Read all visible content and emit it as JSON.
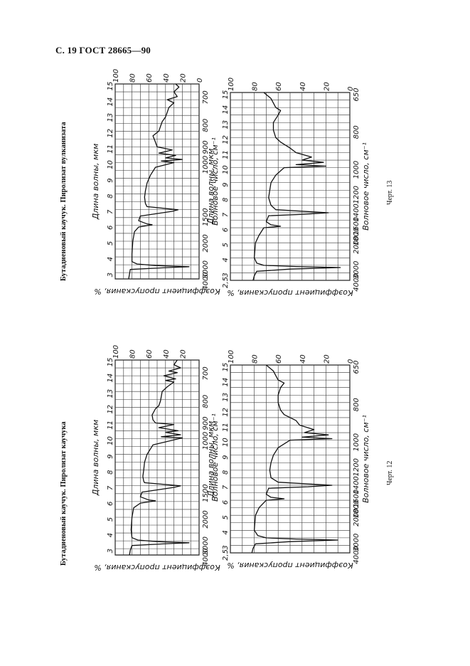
{
  "page": {
    "header": "С. 19 ГОСТ 28665—90"
  },
  "figures": [
    {
      "id": "ch12",
      "caption": "Бутадиеновый каучук. Пиролизат каучука",
      "label": "Черт. 12"
    },
    {
      "id": "ch13",
      "caption": "Бутадиеновый каучук. Пиролизат вулканизата",
      "label": "Черт. 13"
    }
  ],
  "chart_data": [
    {
      "type": "line",
      "figure": "Черт. 12 (верхний спектр)",
      "xlabel": "Длина волны, мкм",
      "xlabel2": "Волновое число, см⁻¹",
      "ylabel": "Коэффициент пропускания, %",
      "wavelength_ticks": [
        "3",
        "4",
        "5",
        "6",
        "7",
        "8",
        "9",
        "10",
        "11",
        "12",
        "13",
        "14",
        "15"
      ],
      "wavenumber_ticks": [
        "4000",
        "3000",
        "2000",
        "1500",
        "1000",
        "900",
        "800",
        "700"
      ],
      "transmittance_ticks": [
        "100",
        "80",
        "60",
        "40",
        "20"
      ],
      "xlim": [
        2.6,
        15
      ],
      "ylim": [
        0,
        100
      ],
      "x": [
        2.6,
        2.9,
        3.2,
        3.3,
        3.38,
        3.45,
        3.55,
        3.7,
        4.2,
        5.0,
        5.6,
        5.9,
        6.05,
        6.1,
        6.3,
        6.6,
        6.9,
        7.0,
        7.2,
        7.3,
        7.6,
        8.0,
        8.5,
        9.0,
        9.6,
        10.05,
        10.12,
        10.25,
        10.4,
        10.5,
        10.7,
        10.9,
        11.0,
        11.2,
        11.5,
        11.9,
        12.1,
        12.4,
        12.7,
        13.0,
        13.3,
        13.6,
        13.7,
        13.8,
        14.0,
        14.2,
        14.3,
        14.5,
        14.7,
        15.0
      ],
      "y": [
        83,
        82,
        80,
        45,
        12,
        50,
        73,
        80,
        81,
        80,
        78,
        70,
        52,
        60,
        70,
        68,
        30,
        22,
        65,
        66,
        67,
        66,
        65,
        62,
        55,
        20,
        45,
        22,
        40,
        25,
        48,
        30,
        52,
        55,
        56,
        52,
        48,
        46,
        45,
        44,
        38,
        30,
        40,
        28,
        42,
        26,
        36,
        22,
        30,
        26
      ]
    },
    {
      "type": "line",
      "figure": "Черт. 12 (нижний спектр)",
      "xlabel": "Длина волны, мкм",
      "xlabel2": "Волновое число, см⁻¹",
      "ylabel": "Коэффициент пропускания, %",
      "wavelength_ticks": [
        "2,5",
        "3",
        "4",
        "5",
        "6",
        "7",
        "8",
        "9",
        "10",
        "11",
        "12",
        "13",
        "14",
        "15"
      ],
      "wavenumber_ticks": [
        "4000",
        "3000",
        "2000",
        "1800",
        "1600",
        "1400",
        "1200",
        "1000",
        "800",
        "650"
      ],
      "transmittance_ticks": [
        "100",
        "80",
        "60",
        "40",
        "20",
        "0"
      ],
      "xlim": [
        2.5,
        15
      ],
      "ylim": [
        0,
        100
      ],
      "x": [
        2.5,
        2.8,
        3.1,
        3.25,
        3.35,
        3.42,
        3.5,
        3.65,
        4.0,
        5.0,
        5.5,
        6.0,
        6.1,
        6.2,
        6.4,
        6.8,
        6.9,
        7.0,
        7.2,
        7.5,
        8.0,
        8.5,
        9.0,
        9.5,
        10.0,
        10.1,
        10.2,
        10.35,
        10.5,
        10.7,
        11.0,
        11.3,
        11.7,
        12.0,
        12.5,
        13.0,
        13.5,
        13.8,
        14.0,
        14.3,
        14.6,
        15.0
      ],
      "y": [
        82,
        81,
        79,
        50,
        10,
        45,
        70,
        77,
        80,
        79,
        76,
        70,
        55,
        66,
        70,
        68,
        35,
        15,
        60,
        66,
        67,
        66,
        64,
        60,
        50,
        15,
        40,
        18,
        38,
        30,
        42,
        45,
        55,
        58,
        60,
        60,
        58,
        55,
        60,
        62,
        64,
        70
      ]
    },
    {
      "type": "line",
      "figure": "Черт. 13 (верхний спектр)",
      "xlabel": "Длина волны, мкм",
      "xlabel2": "Волновое число, см⁻¹",
      "ylabel": "Коэффициент пропускания, %",
      "wavelength_ticks": [
        "3",
        "4",
        "5",
        "6",
        "7",
        "8",
        "9",
        "10",
        "11",
        "12",
        "13",
        "14",
        "15"
      ],
      "wavenumber_ticks": [
        "4000",
        "3000",
        "2000",
        "1500",
        "1000",
        "900",
        "800",
        "700"
      ],
      "transmittance_ticks": [
        "100",
        "80",
        "60",
        "40",
        "20",
        "0"
      ],
      "xlim": [
        2.6,
        15
      ],
      "ylim": [
        0,
        100
      ],
      "x": [
        2.6,
        2.9,
        3.2,
        3.3,
        3.38,
        3.45,
        3.55,
        3.7,
        4.2,
        5.0,
        5.6,
        5.9,
        6.05,
        6.1,
        6.3,
        6.6,
        6.9,
        7.0,
        7.2,
        7.4,
        7.8,
        8.2,
        8.7,
        9.2,
        9.7,
        10.0,
        10.1,
        10.2,
        10.3,
        10.45,
        10.6,
        10.8,
        11.0,
        11.3,
        11.7,
        12.0,
        12.3,
        12.6,
        12.9,
        13.2,
        13.5,
        13.8,
        14.0,
        14.2,
        14.5,
        14.8,
        15.0
      ],
      "y": [
        84,
        83,
        82,
        45,
        12,
        52,
        74,
        80,
        80,
        79,
        77,
        72,
        56,
        62,
        72,
        70,
        32,
        25,
        62,
        64,
        65,
        64,
        62,
        58,
        52,
        30,
        45,
        20,
        40,
        28,
        48,
        32,
        50,
        52,
        55,
        48,
        46,
        44,
        40,
        38,
        36,
        30,
        38,
        26,
        30,
        24,
        28
      ]
    },
    {
      "type": "line",
      "figure": "Черт. 13 (нижний спектр)",
      "xlabel": "Длина волны, мкм",
      "xlabel2": "Волновое число, см⁻¹",
      "ylabel": "Коэффициент пропускания, %",
      "wavelength_ticks": [
        "2,5",
        "3",
        "4",
        "5",
        "6",
        "7",
        "8",
        "9",
        "10",
        "11",
        "12",
        "13",
        "14",
        "15"
      ],
      "wavenumber_ticks": [
        "4000",
        "3000",
        "2000",
        "1800",
        "1600",
        "1400",
        "1200",
        "1000",
        "800",
        "650"
      ],
      "transmittance_ticks": [
        "100",
        "80",
        "60",
        "40",
        "20",
        "0"
      ],
      "xlim": [
        2.5,
        15
      ],
      "ylim": [
        0,
        100
      ],
      "x": [
        2.5,
        2.8,
        3.1,
        3.25,
        3.35,
        3.42,
        3.5,
        3.65,
        4.0,
        5.0,
        5.5,
        6.0,
        6.1,
        6.2,
        6.4,
        6.8,
        6.9,
        7.0,
        7.2,
        7.5,
        8.0,
        8.5,
        9.0,
        9.5,
        10.0,
        10.1,
        10.2,
        10.35,
        10.5,
        10.7,
        11.0,
        11.3,
        11.7,
        12.0,
        12.5,
        13.0,
        13.5,
        13.8,
        14.0,
        14.3,
        14.6,
        15.0
      ],
      "y": [
        81,
        80,
        78,
        50,
        8,
        45,
        72,
        78,
        80,
        79,
        76,
        72,
        58,
        66,
        70,
        68,
        38,
        18,
        62,
        66,
        68,
        67,
        66,
        62,
        55,
        20,
        45,
        22,
        40,
        32,
        45,
        50,
        58,
        62,
        64,
        64,
        60,
        58,
        62,
        64,
        66,
        72
      ]
    }
  ]
}
